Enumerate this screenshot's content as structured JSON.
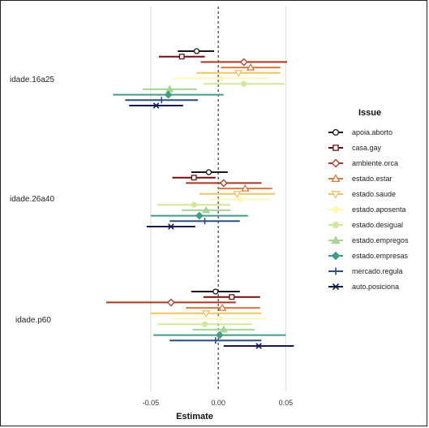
{
  "chart_data": {
    "type": "scatter",
    "subtype": "coefficient-plot",
    "xlabel": "Estimate",
    "xlim": [
      -0.098,
      0.063
    ],
    "xticks": [
      -0.05,
      0.0,
      0.05
    ],
    "xtick_labels": [
      "-0.05",
      "0.00",
      "0.05"
    ],
    "zero_line": "dashed",
    "grid": "vertical major",
    "legend_title": "Issue",
    "legend_placement": "right",
    "groups": [
      "idade.16a25",
      "idade.26a40",
      "idade.p60"
    ],
    "series": [
      {
        "name": "apoia.aborto",
        "color": "#1a1a1a",
        "marker": "circle",
        "estimates": [
          -0.016,
          -0.007,
          -0.002
        ],
        "ci_low": [
          -0.03,
          -0.02,
          -0.02
        ],
        "ci_high": [
          -0.003,
          0.007,
          0.016
        ]
      },
      {
        "name": "casa.gay",
        "color": "#6b1010",
        "marker": "square",
        "estimates": [
          -0.027,
          -0.018,
          0.01
        ],
        "ci_low": [
          -0.044,
          -0.034,
          -0.011
        ],
        "ci_high": [
          -0.01,
          -0.002,
          0.031
        ]
      },
      {
        "name": "ambiente.orca",
        "color": "#b0351c",
        "marker": "diamond",
        "estimates": [
          0.019,
          0.004,
          -0.035
        ],
        "ci_low": [
          -0.013,
          -0.024,
          -0.083
        ],
        "ci_high": [
          0.051,
          0.032,
          0.013
        ]
      },
      {
        "name": "estado.estar",
        "color": "#d7793a",
        "marker": "triangle-up",
        "estimates": [
          0.024,
          0.02,
          0.003
        ],
        "ci_low": [
          0.002,
          0.0,
          -0.024
        ],
        "ci_high": [
          0.046,
          0.04,
          0.031
        ]
      },
      {
        "name": "estado.saude",
        "color": "#efc46a",
        "marker": "triangle-down",
        "estimates": [
          0.015,
          0.014,
          -0.009
        ],
        "ci_low": [
          -0.016,
          -0.014,
          -0.05
        ],
        "ci_high": [
          0.046,
          0.042,
          0.032
        ]
      },
      {
        "name": "estado.aposenta",
        "color": "#fff8b4",
        "marker": "circle",
        "estimates": [
          0.002,
          0.016,
          0.001
        ],
        "ci_low": [
          -0.033,
          -0.006,
          -0.034
        ],
        "ci_high": [
          0.037,
          0.038,
          0.036
        ]
      },
      {
        "name": "estado.desigual",
        "color": "#d4e69a",
        "marker": "circle",
        "estimates": [
          0.019,
          -0.018,
          -0.01
        ],
        "ci_low": [
          -0.011,
          -0.045,
          -0.045
        ],
        "ci_high": [
          0.049,
          0.009,
          0.025
        ]
      },
      {
        "name": "estado.empregos",
        "color": "#a6d496",
        "marker": "triangle-up",
        "estimates": [
          -0.036,
          -0.009,
          0.004
        ],
        "ci_low": [
          -0.056,
          -0.027,
          -0.019
        ],
        "ci_high": [
          -0.016,
          0.009,
          0.027
        ]
      },
      {
        "name": "estado.empresas",
        "color": "#3f9e86",
        "marker": "diamond",
        "estimates": [
          -0.037,
          -0.014,
          0.001
        ],
        "ci_low": [
          -0.078,
          -0.05,
          -0.048
        ],
        "ci_high": [
          0.004,
          0.022,
          0.05
        ]
      },
      {
        "name": "mercado.regula",
        "color": "#2c4f80",
        "marker": "plus",
        "estimates": [
          -0.042,
          -0.01,
          -0.002
        ],
        "ci_low": [
          -0.069,
          -0.036,
          -0.036
        ],
        "ci_high": [
          -0.015,
          0.016,
          0.032
        ]
      },
      {
        "name": "auto.posiciona",
        "color": "#141a4a",
        "marker": "x",
        "estimates": [
          -0.046,
          -0.035,
          0.03
        ],
        "ci_low": [
          -0.066,
          -0.053,
          0.004
        ],
        "ci_high": [
          -0.026,
          -0.017,
          0.056
        ]
      }
    ]
  }
}
